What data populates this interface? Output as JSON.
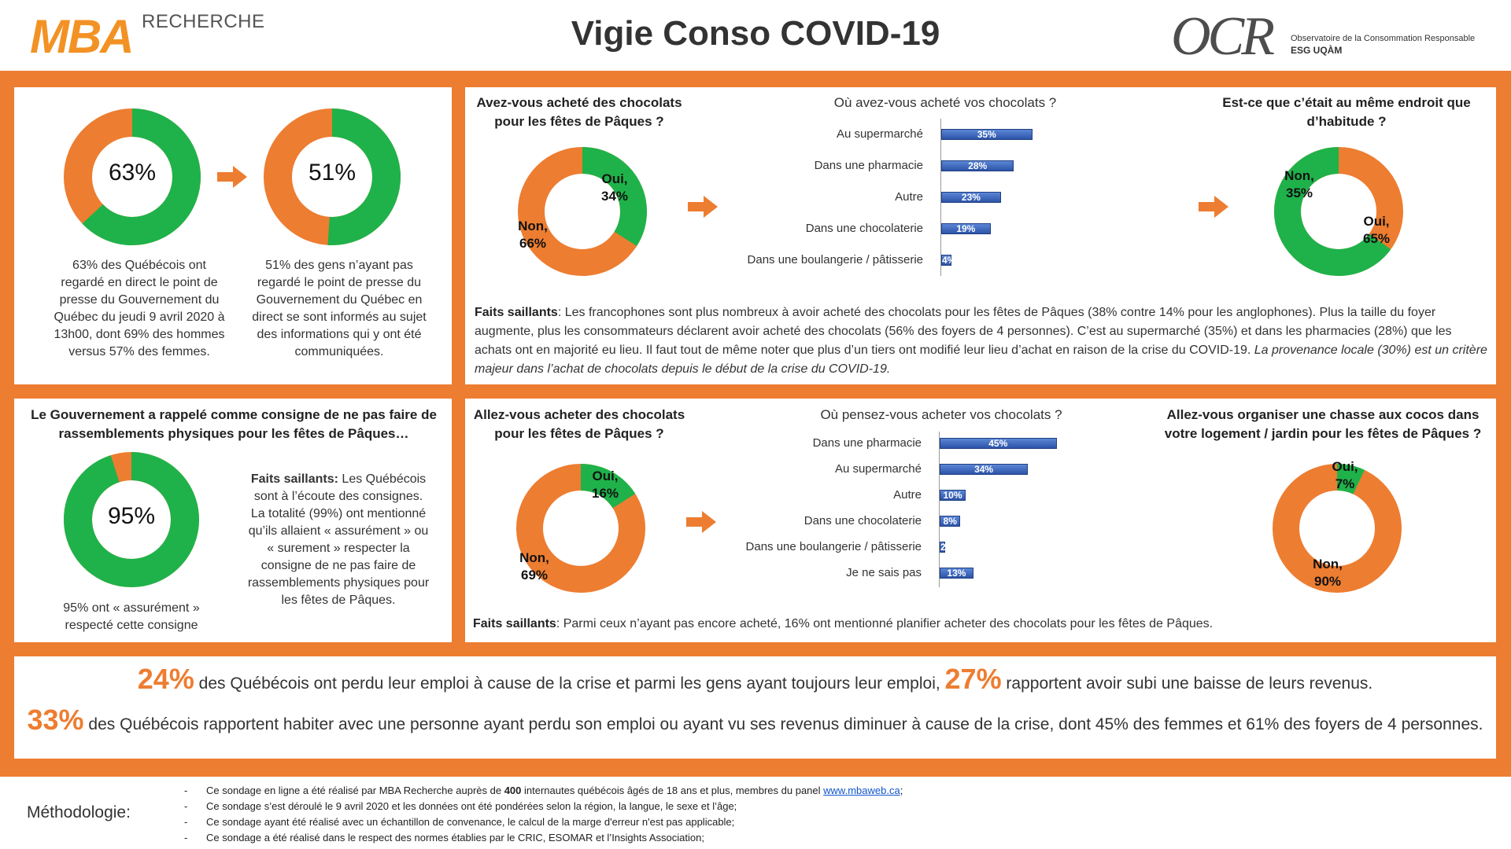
{
  "header": {
    "brand_left_main": "MBA",
    "brand_left_sub": "RECHERCHE",
    "title": "Vigie Conso COVID-19",
    "brand_right_main": "OCR",
    "brand_right_line1": "Observatoire de la Consommation Responsable",
    "brand_right_line2": "ESG UQÀM"
  },
  "colors": {
    "orange": "#ed7d31",
    "green": "#1fb24a",
    "bar_blue": "#2c54a8"
  },
  "panel1": {
    "donut1_pct": "63%",
    "donut1_value": 63,
    "donut1_text": "63% des Québécois ont regardé en direct le point de presse du Gouvernement du Québec du jeudi 9 avril 2020 à 13h00, dont 69% des hommes versus 57% des femmes.",
    "donut2_pct": "51%",
    "donut2_value": 51,
    "donut2_text": "51% des gens n’ayant pas regardé le point de presse du Gouvernement du Québec en direct se sont informés au sujet des informations qui y ont été communiquées."
  },
  "panel2": {
    "q1": "Avez-vous acheté des chocolats pour les fêtes de Pâques ?",
    "q1_oui": "Oui,",
    "q1_oui_pct": "34%",
    "q1_non": "Non,",
    "q1_non_pct": "66%",
    "q1_oui_value": 34,
    "q2": "Où avez-vous acheté vos chocolats ?",
    "q3": "Est-ce que c’était au même endroit que d’habitude ?",
    "q3_oui": "Oui,",
    "q3_oui_pct": "65%",
    "q3_non": "Non,",
    "q3_non_pct": "35%",
    "q3_oui_value": 65,
    "faits_label": "Faits saillants",
    "faits_text": ": Les francophones sont plus nombreux à avoir acheté des chocolats pour les fêtes de Pâques (38% contre 14% pour les anglophones). Plus la taille du foyer augmente, plus les consommateurs déclarent avoir acheté des chocolats (56% des foyers de 4 personnes). C’est au supermarché (35%) et dans les pharmacies (28%) que les achats ont en majorité eu lieu. Il faut tout de même noter que plus d’un tiers ont modifié leur lieu d’achat en raison de la crise du COVID-19. ",
    "faits_italic": "La provenance locale (30%) est un critère majeur dans l’achat de chocolats depuis le début de la crise du COVID-19."
  },
  "panel3": {
    "title": "Le Gouvernement a rappelé comme consigne de ne pas faire de rassemblements physiques pour les fêtes de Pâques…",
    "donut_pct": "95%",
    "donut_value": 95,
    "donut_text": "95% ont « assurément » respecté cette consigne",
    "faits_label": "Faits saillants:",
    "faits_text": " Les Québécois sont à l’écoute des consignes. La totalité (99%) ont mentionné qu’ils allaient « assurément » ou « surement » respecter la consigne de ne pas faire de rassemblements physiques pour les fêtes de Pâques."
  },
  "panel4": {
    "q1": "Allez-vous acheter des chocolats pour les fêtes de Pâques ?",
    "q1_oui": "Oui,",
    "q1_oui_pct": "16%",
    "q1_non": "Non,",
    "q1_non_pct": "69%",
    "q1_oui_value": 16,
    "q1_non_value": 69,
    "q2": "Où pensez-vous acheter vos chocolats ?",
    "q3": "Allez-vous organiser une chasse aux cocos dans votre logement / jardin pour les fêtes de Pâques ?",
    "q3_oui": "Oui,",
    "q3_oui_pct": "7%",
    "q3_non": "Non,",
    "q3_non_pct": "90%",
    "q3_oui_value": 7,
    "q3_non_value": 90,
    "faits_label": "Faits saillants",
    "faits_text": ": Parmi ceux n’ayant pas encore acheté, 16% ont mentionné planifier acheter des chocolats pour les fêtes de Pâques."
  },
  "chart_data": [
    {
      "type": "bar",
      "title": "Où avez-vous acheté vos chocolats ?",
      "categories": [
        "Au supermarché",
        "Dans une pharmacie",
        "Autre",
        "Dans une chocolaterie",
        "Dans une boulangerie / pâtisserie"
      ],
      "values": [
        35,
        28,
        23,
        19,
        4
      ],
      "value_labels": [
        "35%",
        "28%",
        "23%",
        "19%",
        "4%"
      ]
    },
    {
      "type": "bar",
      "title": "Où pensez-vous acheter vos chocolats ?",
      "categories": [
        "Dans une pharmacie",
        "Au supermarché",
        "Autre",
        "Dans une chocolaterie",
        "Dans une boulangerie / pâtisserie",
        "Je ne sais pas"
      ],
      "values": [
        45,
        34,
        10,
        8,
        2,
        13
      ],
      "value_labels": [
        "45%",
        "34%",
        "10%",
        "8%",
        "2%",
        "13%"
      ]
    }
  ],
  "bottom": {
    "pct1": "24%",
    "text1": " des Québécois ont perdu leur emploi à cause de la crise et parmi les gens ayant toujours leur emploi, ",
    "pct2": "27%",
    "text2": " rapportent avoir subi une baisse de leurs revenus.",
    "pct3": "33%",
    "text3": " des Québécois rapportent habiter avec une personne ayant perdu son emploi ou ayant vu ses revenus diminuer à cause de la crise, dont 45% des femmes et 61% des foyers de 4 personnes."
  },
  "methodology": {
    "title": "Méthodologie:",
    "item1_a": "Ce sondage en ligne a été réalisé par MBA Recherche auprès de ",
    "item1_b": "400",
    "item1_c": " internautes québécois âgés de 18 ans et plus, membres du panel ",
    "item1_link": "www.mbaweb.ca",
    "item1_d": ";",
    "item2": "Ce sondage s’est déroulé le 9 avril 2020 et les données ont été pondérées selon la région, la langue, le sexe et l’âge;",
    "item3": "Ce sondage ayant été réalisé avec un échantillon de convenance, le calcul de la marge d'erreur n'est pas applicable;",
    "item4": "Ce sondage a été réalisé dans le respect des normes établies par le CRIC, ESOMAR et l’Insights Association;"
  }
}
